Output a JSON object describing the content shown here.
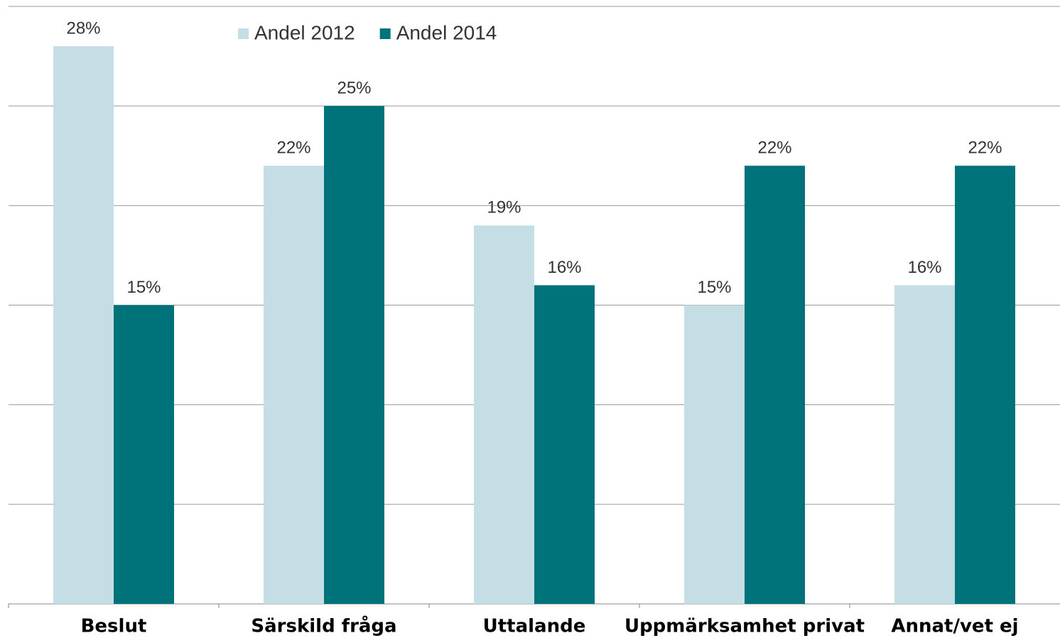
{
  "chart_data": {
    "type": "bar",
    "categories": [
      "Beslut",
      "Särskild fråga",
      "Uttalande",
      "Uppmärksamhet privat",
      "Annat/vet ej"
    ],
    "series": [
      {
        "name": "Andel 2012",
        "color": "#c5dee6",
        "values": [
          28,
          22,
          19,
          15,
          16
        ],
        "value_labels": [
          "28%",
          "22%",
          "19%",
          "15%",
          "16%"
        ]
      },
      {
        "name": "Andel 2014",
        "color": "#00737a",
        "values": [
          15,
          25,
          16,
          22,
          22
        ],
        "value_labels": [
          "15%",
          "25%",
          "16%",
          "22%",
          "22%"
        ]
      }
    ],
    "ylim": [
      0,
      30
    ],
    "yticks": [
      0,
      5,
      10,
      15,
      20,
      25,
      30
    ],
    "grid": true,
    "legend": "top-left"
  }
}
